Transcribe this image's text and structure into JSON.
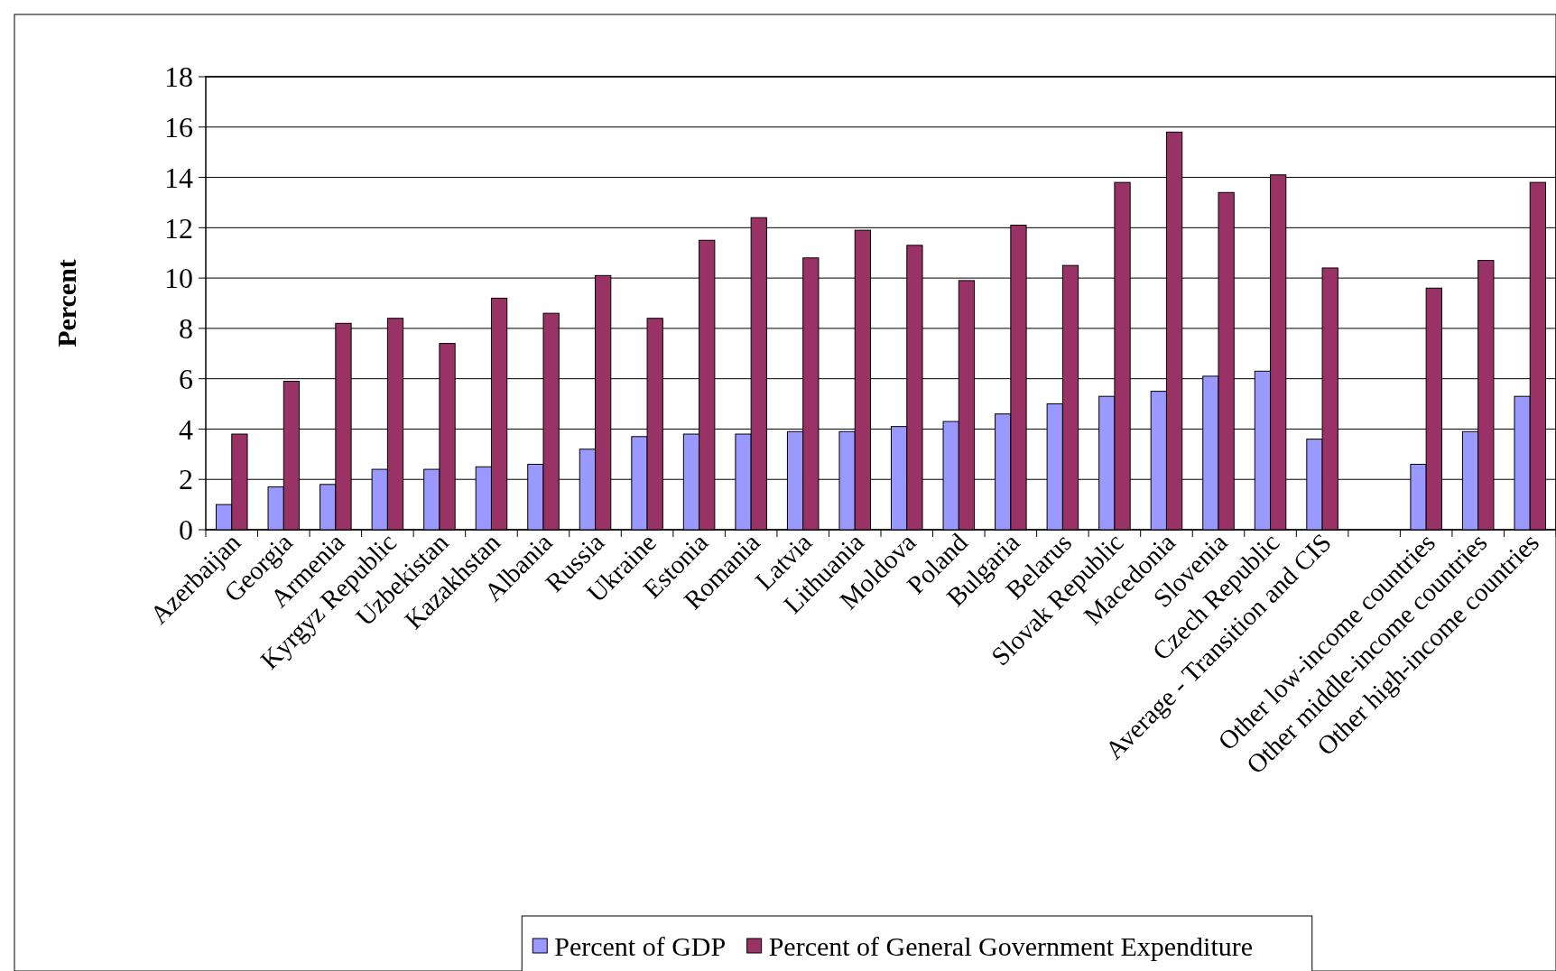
{
  "chart_data": {
    "type": "bar",
    "ylabel": "Percent",
    "categories": [
      "Azerbaijan",
      "Georgia",
      "Armenia",
      "Kyrgyz Republic",
      "Uzbekistan",
      "Kazakhstan",
      "Albania",
      "Russia",
      "Ukraine",
      "Estonia",
      "Romania",
      "Latvia",
      "Lithuania",
      "Moldova",
      "Poland",
      "Bulgaria",
      "Belarus",
      "Slovak Republic",
      "Macedonia",
      "Slovenia",
      "Czech Republic",
      "Average - Transition and CIS",
      null,
      "Other low-income countries",
      "Other middle-income countries",
      "Other high-income countries"
    ],
    "series": [
      {
        "name": "Percent of GDP",
        "color": "#9999ff",
        "values": [
          1.0,
          1.7,
          1.8,
          2.4,
          2.4,
          2.5,
          2.6,
          3.2,
          3.7,
          3.8,
          3.8,
          3.9,
          3.9,
          4.1,
          4.3,
          4.6,
          5.0,
          5.3,
          5.5,
          6.1,
          6.3,
          3.6,
          null,
          2.6,
          3.9,
          5.3
        ]
      },
      {
        "name": "Percent of General Government Expenditure",
        "color": "#993366",
        "values": [
          3.8,
          5.9,
          8.2,
          8.4,
          7.4,
          9.2,
          8.6,
          10.1,
          8.4,
          11.5,
          12.4,
          10.8,
          11.9,
          11.3,
          9.9,
          12.1,
          10.5,
          13.8,
          15.8,
          13.4,
          14.1,
          10.4,
          null,
          9.6,
          10.7,
          13.8
        ]
      }
    ],
    "ylim": [
      0,
      18
    ],
    "yticks": [
      0,
      2,
      4,
      6,
      8,
      10,
      12,
      14,
      16,
      18
    ],
    "grid": "y",
    "legend": "bottom"
  }
}
